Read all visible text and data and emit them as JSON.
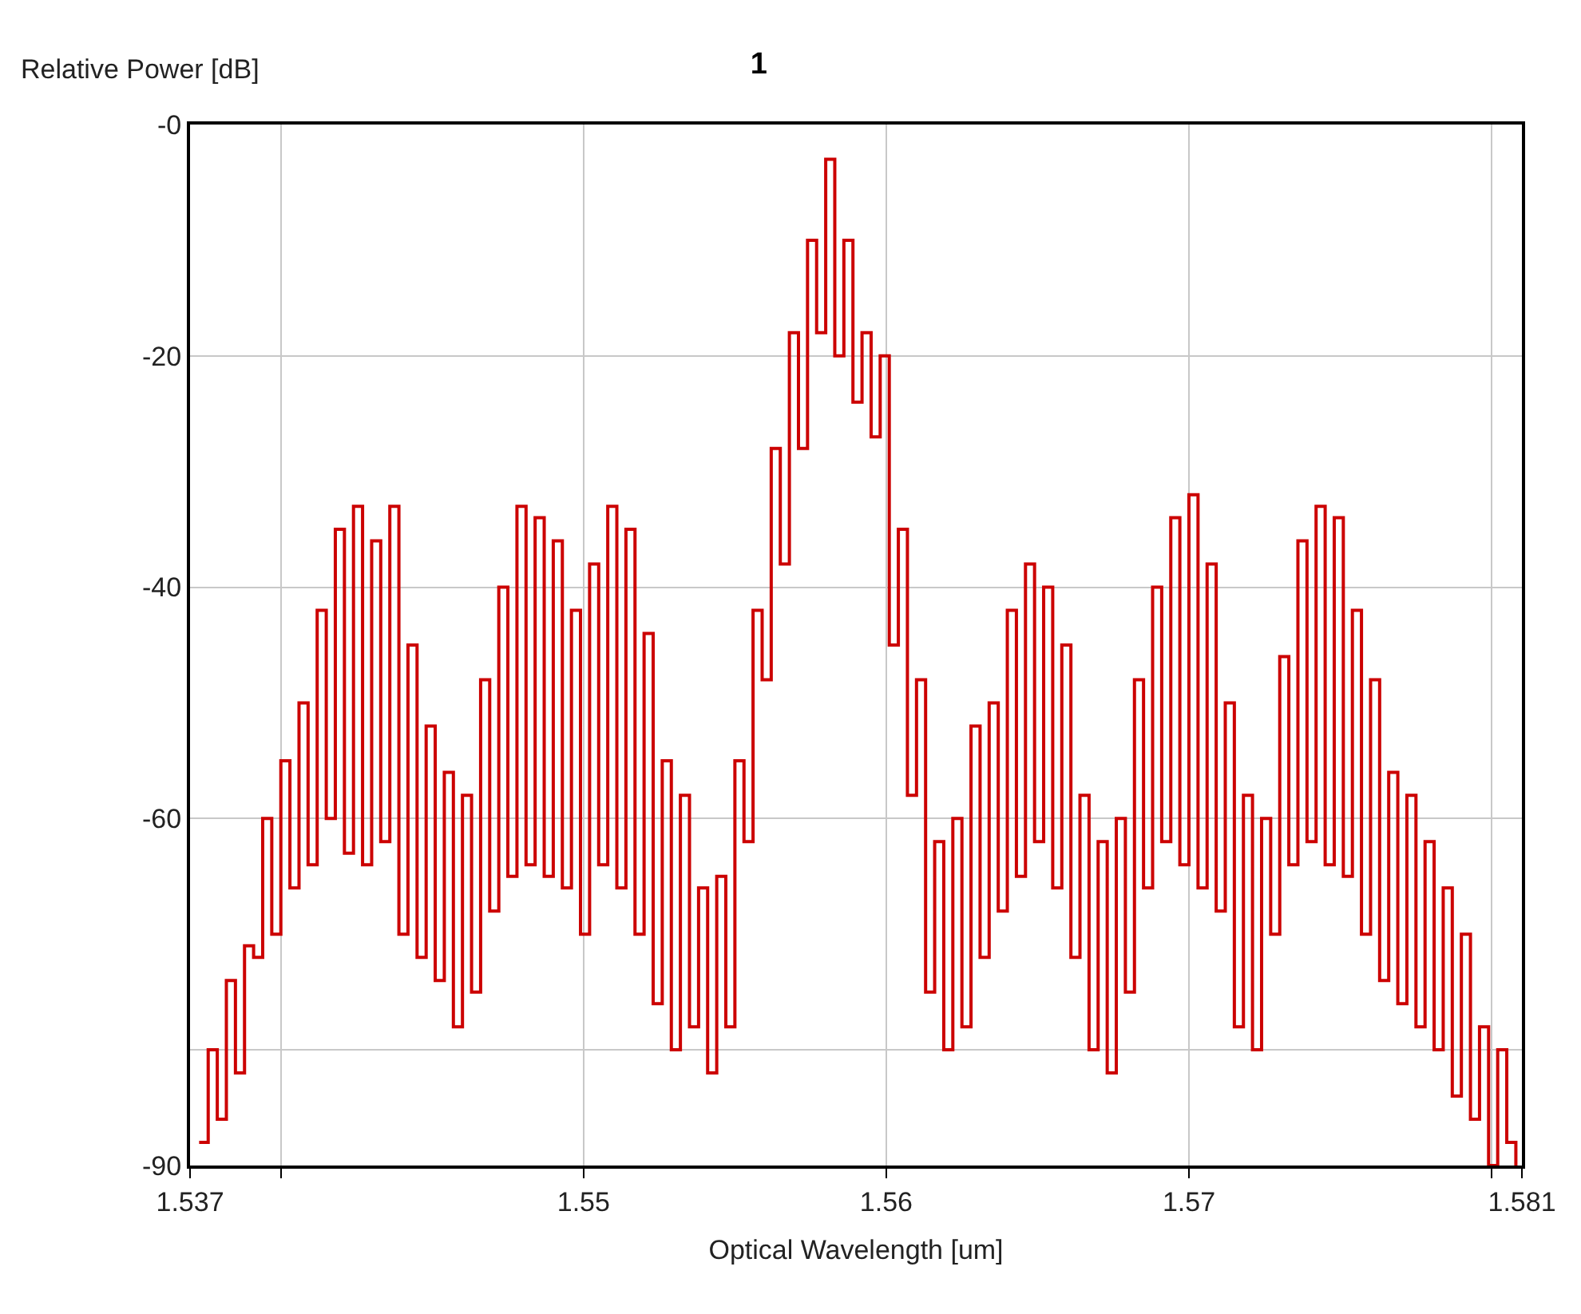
{
  "chart_data": {
    "type": "step",
    "title": "1",
    "xlabel": "Optical Wavelength [um]",
    "ylabel": "Relative Power [dB]",
    "x": [
      1.5373,
      1.5376,
      1.5379,
      1.5382,
      1.5385,
      1.5388,
      1.5391,
      1.5394,
      1.5397,
      1.54,
      1.5403,
      1.5406,
      1.5409,
      1.5412,
      1.5415,
      1.5418,
      1.5421,
      1.5424,
      1.5427,
      1.543,
      1.5433,
      1.5436,
      1.5439,
      1.5442,
      1.5445,
      1.5448,
      1.5451,
      1.5454,
      1.5457,
      1.546,
      1.5463,
      1.5466,
      1.5469,
      1.5472,
      1.5475,
      1.5478,
      1.5481,
      1.5484,
      1.5487,
      1.549,
      1.5493,
      1.5496,
      1.5499,
      1.5502,
      1.5505,
      1.5508,
      1.5511,
      1.5514,
      1.5517,
      1.552,
      1.5523,
      1.5526,
      1.5529,
      1.5532,
      1.5535,
      1.5538,
      1.5541,
      1.5544,
      1.5547,
      1.555,
      1.5553,
      1.5556,
      1.5559,
      1.5562,
      1.5565,
      1.5568,
      1.5571,
      1.5574,
      1.5577,
      1.558,
      1.5583,
      1.5586,
      1.5589,
      1.5592,
      1.5595,
      1.5598,
      1.5601,
      1.5604,
      1.5607,
      1.561,
      1.5613,
      1.5616,
      1.5619,
      1.5622,
      1.5625,
      1.5628,
      1.5631,
      1.5634,
      1.5637,
      1.564,
      1.5643,
      1.5646,
      1.5649,
      1.5652,
      1.5655,
      1.5658,
      1.5661,
      1.5664,
      1.5667,
      1.567,
      1.5673,
      1.5676,
      1.5679,
      1.5682,
      1.5685,
      1.5688,
      1.5691,
      1.5694,
      1.5697,
      1.57,
      1.5703,
      1.5706,
      1.5709,
      1.5712,
      1.5715,
      1.5718,
      1.5721,
      1.5724,
      1.5727,
      1.573,
      1.5733,
      1.5736,
      1.5739,
      1.5742,
      1.5745,
      1.5748,
      1.5751,
      1.5754,
      1.5757,
      1.576,
      1.5763,
      1.5766,
      1.5769,
      1.5772,
      1.5775,
      1.5778,
      1.5781,
      1.5784,
      1.5787,
      1.579,
      1.5793,
      1.5796,
      1.5799,
      1.5802,
      1.5805,
      1.5808
    ],
    "series": [
      {
        "color": "#cc0000",
        "values": [
          -88,
          -80,
          -86,
          -74,
          -82,
          -71,
          -72,
          -60,
          -70,
          -55,
          -66,
          -50,
          -64,
          -42,
          -60,
          -35,
          -63,
          -33,
          -64,
          -36,
          -62,
          -33,
          -70,
          -45,
          -72,
          -52,
          -74,
          -56,
          -78,
          -58,
          -75,
          -48,
          -68,
          -40,
          -65,
          -33,
          -64,
          -34,
          -65,
          -36,
          -66,
          -42,
          -70,
          -38,
          -64,
          -33,
          -66,
          -35,
          -70,
          -44,
          -76,
          -55,
          -80,
          -58,
          -78,
          -66,
          -82,
          -65,
          -78,
          -55,
          -62,
          -42,
          -48,
          -28,
          -38,
          -18,
          -28,
          -10,
          -18,
          -3,
          -20,
          -10,
          -24,
          -18,
          -27,
          -20,
          -45,
          -35,
          -58,
          -48,
          -75,
          -62,
          -80,
          -60,
          -78,
          -52,
          -72,
          -50,
          -68,
          -42,
          -65,
          -38,
          -62,
          -40,
          -66,
          -45,
          -72,
          -58,
          -80,
          -62,
          -82,
          -60,
          -75,
          -48,
          -66,
          -40,
          -62,
          -34,
          -64,
          -32,
          -66,
          -38,
          -68,
          -50,
          -78,
          -58,
          -80,
          -60,
          -70,
          -46,
          -64,
          -36,
          -62,
          -33,
          -64,
          -34,
          -65,
          -42,
          -70,
          -48,
          -74,
          -56,
          -76,
          -58,
          -78,
          -62,
          -80,
          -66,
          -84,
          -70,
          -86,
          -78,
          -90,
          -80,
          -88,
          -90
        ]
      }
    ],
    "xlim": [
      1.537,
      1.581
    ],
    "xticks": [
      1.537,
      {
        "value": 1.54,
        "label": null
      },
      1.55,
      1.56,
      1.57,
      {
        "value": 1.58,
        "label": null
      },
      1.581
    ],
    "ylim": [
      -90,
      0
    ],
    "yticks": [
      {
        "value": 0,
        "label": "-0"
      },
      -20,
      -40,
      -60,
      {
        "value": -80,
        "label": null
      },
      -90
    ],
    "grid": true,
    "marker": "none",
    "line_style": "solid"
  }
}
